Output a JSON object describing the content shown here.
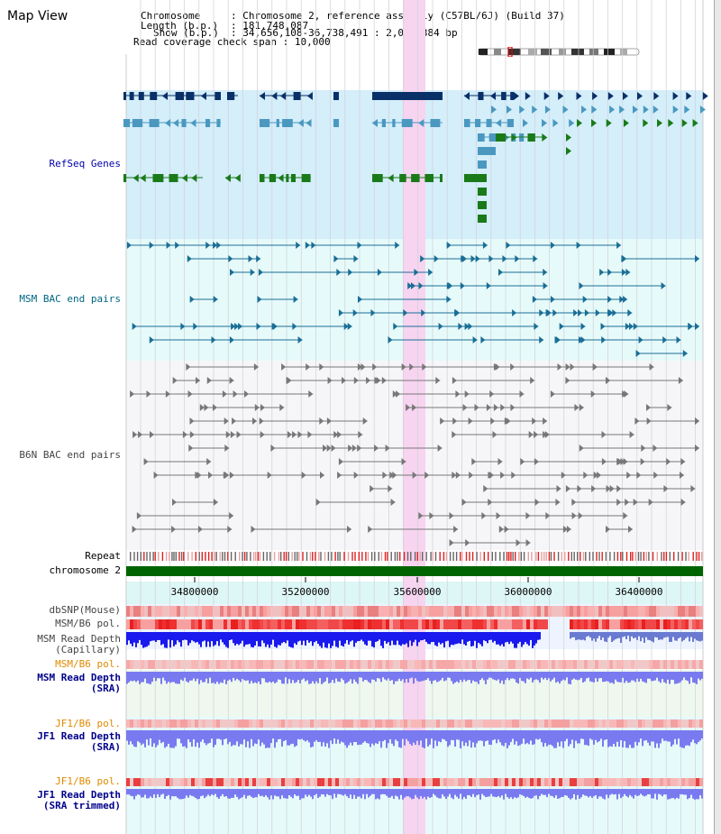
{
  "app": {
    "title": "Map View"
  },
  "info": {
    "chromosome_label": "Chromosome",
    "chromosome_value": "Chromosome 2, reference assembly (C57BL/6J) (Build 37)",
    "length_label": "Length (b.p.)",
    "length_value": "181,748,087",
    "show_label": "Show (b.p.)",
    "show_value": "34,656,108-36,738,491 : 2,082,384 bp",
    "span_label": "Read coverage check span",
    "span_value": "10,000"
  },
  "tracks": {
    "refseq": "RefSeq Genes",
    "msm_bac": "MSM BAC end pairs",
    "b6n_bac": "B6N BAC end pairs",
    "repeat": "Repeat",
    "chromosome": "chromosome 2",
    "dbsnp": "dbSNP(Mouse)",
    "msm_b6_pol": "MSM/B6 pol.",
    "msm_depth_cap_1": "MSM Read Depth",
    "msm_depth_cap_2": "(Capillary)",
    "msm_b6_pol2": "MSM/B6 pol.",
    "msm_depth_sra_1": "MSM Read Depth",
    "msm_depth_sra_2": "(SRA)",
    "jf1_b6_pol": "JF1/B6 pol.",
    "jf1_depth_sra_1": "JF1 Read Depth",
    "jf1_depth_sra_2": "(SRA)",
    "jf1_b6_pol2": "JF1/B6 pol.",
    "jf1_depth_trim_1": "JF1 Read Depth",
    "jf1_depth_trim_2": "(SRA trimmed)"
  },
  "ruler": {
    "ticks": [
      "34800000",
      "35200000",
      "35600000",
      "36000000",
      "36400000"
    ]
  },
  "colors": {
    "refseq_bg": "#d4eefa",
    "msm_bg": "#e6fafa",
    "b6n_bg": "#f6f6f8",
    "highlight": "#f7d4f0",
    "chromosome_bar": "#006400",
    "refseq_dark": "#0a3068",
    "refseq_mid": "#4a98c0",
    "refseq_green": "#1a7a1a",
    "bac_teal": "#1a6e96",
    "depth_blue": "#1a1aee",
    "depth_light": "#7a7af0"
  }
}
